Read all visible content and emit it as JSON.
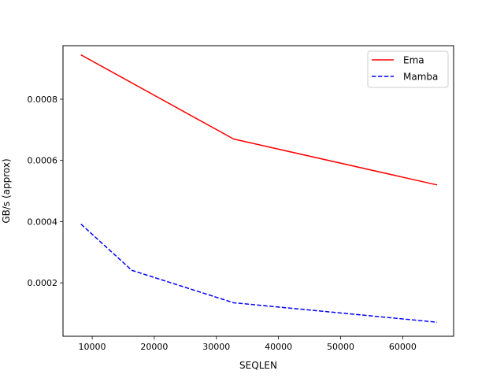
{
  "chart_data": {
    "type": "line",
    "title": "",
    "xlabel": "SEQLEN",
    "ylabel": "GB/s (approx)",
    "xlim": [
      5300,
      68200
    ],
    "ylim": [
      2.55e-05,
      0.000975
    ],
    "xticks": [
      10000,
      20000,
      30000,
      40000,
      50000,
      60000
    ],
    "xtick_labels": [
      "10000",
      "20000",
      "30000",
      "40000",
      "50000",
      "60000"
    ],
    "yticks": [
      0.0002,
      0.0004,
      0.0006,
      0.0008
    ],
    "ytick_labels": [
      "0.0002",
      "0.0004",
      "0.0006",
      "0.0008"
    ],
    "grid": false,
    "legend_position": "upper right",
    "series": [
      {
        "name": "Ema",
        "color": "#ff0000",
        "line_style": "solid",
        "x": [
          8192,
          32768,
          65536
        ],
        "y": [
          0.000945,
          0.00067,
          0.00052
        ]
      },
      {
        "name": "Mamba",
        "color": "#0000ff",
        "line_style": "dashed",
        "x": [
          8192,
          16384,
          32768,
          65536
        ],
        "y": [
          0.000392,
          0.000241,
          0.000135,
          7.15e-05
        ]
      }
    ]
  }
}
